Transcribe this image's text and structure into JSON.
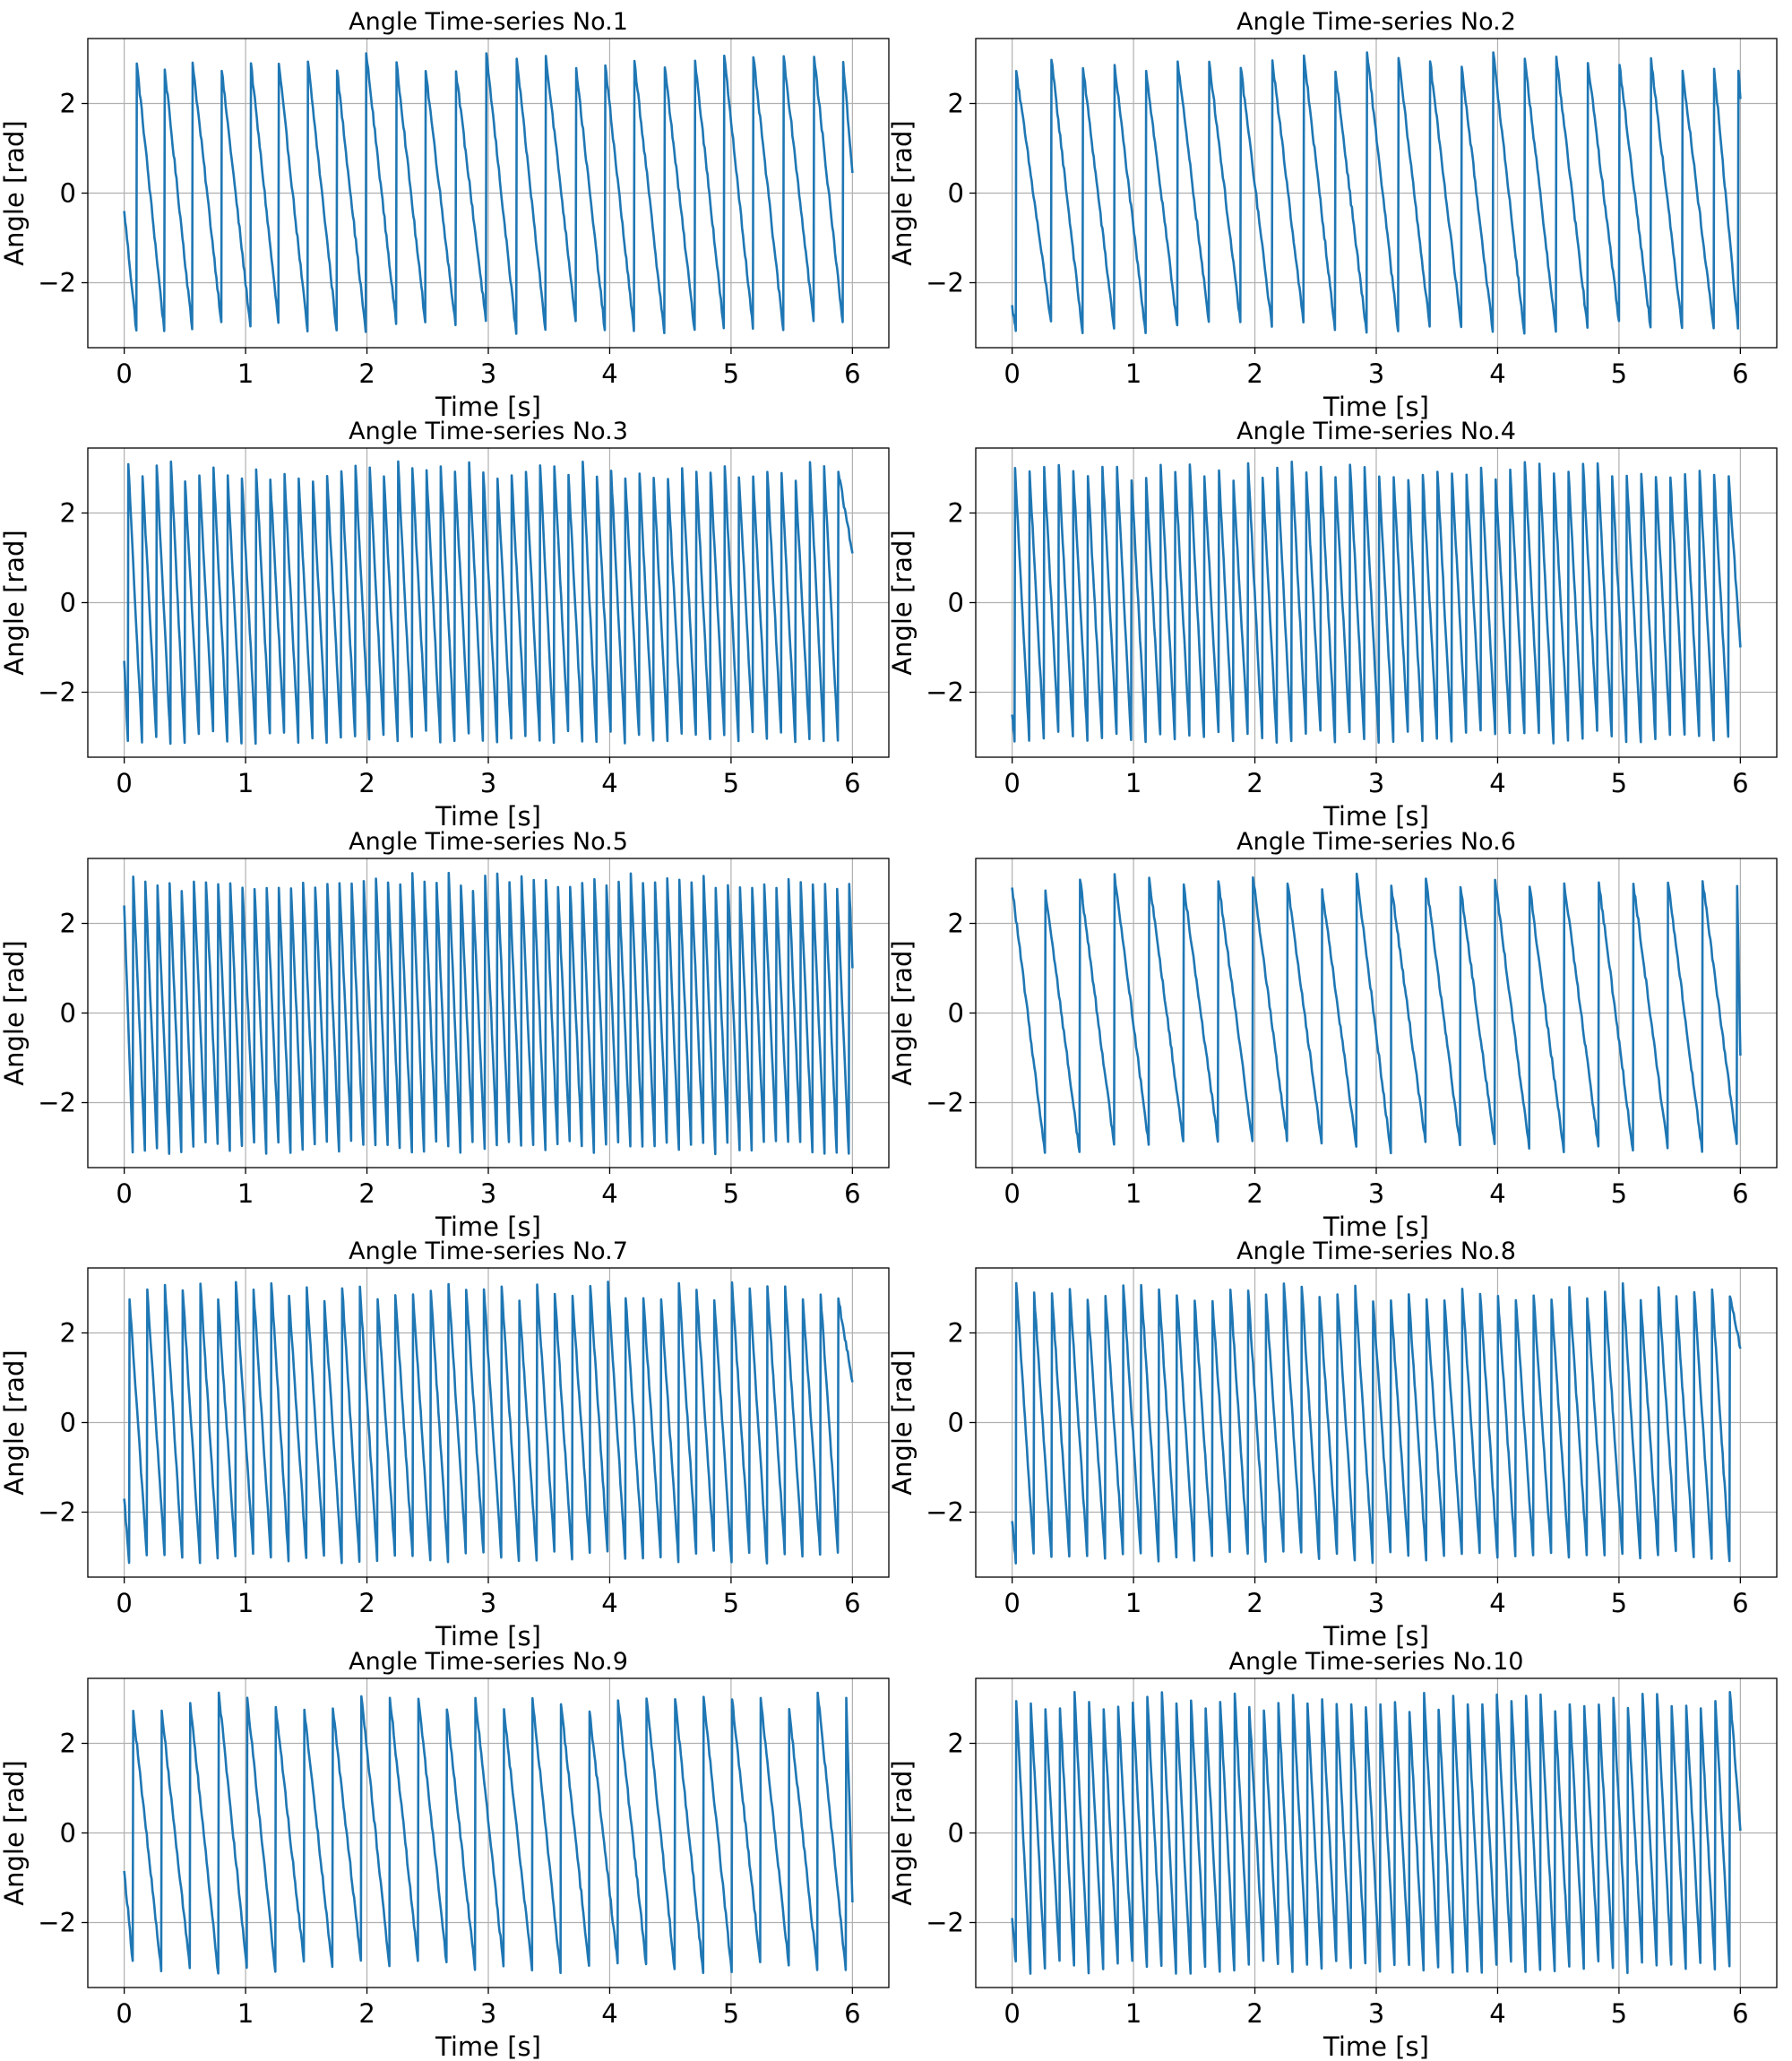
{
  "figure": {
    "line_color": "#1f77b4",
    "grid_color": "#b0b0b0",
    "background": "#ffffff"
  },
  "chart_data": [
    {
      "type": "line",
      "title": "Angle Time-series No.1",
      "xlabel": "Time [s]",
      "ylabel": "Angle [rad]",
      "xlim": [
        -0.3,
        6.3
      ],
      "ylim": [
        -3.45,
        3.45
      ],
      "xticks": [
        0,
        1,
        2,
        3,
        4,
        5,
        6
      ],
      "yticks": [
        -2,
        0,
        2
      ],
      "grid": true,
      "y_start": -0.4,
      "y_end": 0.45,
      "resets": [
        0.1,
        0.33,
        0.56,
        0.8,
        1.04,
        1.27,
        1.51,
        1.75,
        1.99,
        2.24,
        2.48,
        2.73,
        2.98,
        3.23,
        3.47,
        3.72,
        3.96,
        4.2,
        4.45,
        4.7,
        4.94,
        5.18,
        5.43,
        5.68,
        5.92
      ]
    },
    {
      "type": "line",
      "title": "Angle Time-series No.2",
      "xlabel": "Time [s]",
      "ylabel": "Angle [rad]",
      "xlim": [
        -0.3,
        6.3
      ],
      "ylim": [
        -3.45,
        3.45
      ],
      "xticks": [
        0,
        1,
        2,
        3,
        4,
        5,
        6
      ],
      "yticks": [
        -2,
        0,
        2
      ],
      "grid": true,
      "y_start": -2.5,
      "y_end": 2.1,
      "resets": [
        0.03,
        0.32,
        0.58,
        0.84,
        1.1,
        1.36,
        1.62,
        1.88,
        2.14,
        2.4,
        2.66,
        2.92,
        3.18,
        3.44,
        3.7,
        3.96,
        4.22,
        4.48,
        4.74,
        5.0,
        5.26,
        5.52,
        5.78,
        5.98
      ]
    },
    {
      "type": "line",
      "title": "Angle Time-series No.3",
      "xlabel": "Time [s]",
      "ylabel": "Angle [rad]",
      "xlim": [
        -0.3,
        6.3
      ],
      "ylim": [
        -3.45,
        3.45
      ],
      "xticks": [
        0,
        1,
        2,
        3,
        4,
        5,
        6
      ],
      "yticks": [
        -2,
        0,
        2
      ],
      "grid": true,
      "y_start": -1.3,
      "y_end": 1.1,
      "period": 0.117,
      "first_reset": 0.03
    },
    {
      "type": "line",
      "title": "Angle Time-series No.4",
      "xlabel": "Time [s]",
      "ylabel": "Angle [rad]",
      "xlim": [
        -0.3,
        6.3
      ],
      "ylim": [
        -3.45,
        3.45
      ],
      "xticks": [
        0,
        1,
        2,
        3,
        4,
        5,
        6
      ],
      "yticks": [
        -2,
        0,
        2
      ],
      "grid": true,
      "y_start": -2.5,
      "y_end": -1.0,
      "period": 0.12,
      "first_reset": 0.02
    },
    {
      "type": "line",
      "title": "Angle Time-series No.5",
      "xlabel": "Time [s]",
      "ylabel": "Angle [rad]",
      "xlim": [
        -0.3,
        6.3
      ],
      "ylim": [
        -3.45,
        3.45
      ],
      "xticks": [
        0,
        1,
        2,
        3,
        4,
        5,
        6
      ],
      "yticks": [
        -2,
        0,
        2
      ],
      "grid": true,
      "y_start": 2.4,
      "y_end": 1.0,
      "period": 0.1,
      "first_reset": 0.07
    },
    {
      "type": "line",
      "title": "Angle Time-series No.6",
      "xlabel": "Time [s]",
      "ylabel": "Angle [rad]",
      "xlim": [
        -0.3,
        6.3
      ],
      "ylim": [
        -3.45,
        3.45
      ],
      "xticks": [
        0,
        1,
        2,
        3,
        4,
        5,
        6
      ],
      "yticks": [
        -2,
        0,
        2
      ],
      "grid": true,
      "y_start": 2.8,
      "y_end": -0.95,
      "period": 0.285,
      "first_reset": 0.27
    },
    {
      "type": "line",
      "title": "Angle Time-series No.7",
      "xlabel": "Time [s]",
      "ylabel": "Angle [rad]",
      "xlim": [
        -0.3,
        6.3
      ],
      "ylim": [
        -3.45,
        3.45
      ],
      "xticks": [
        0,
        1,
        2,
        3,
        4,
        5,
        6
      ],
      "yticks": [
        -2,
        0,
        2
      ],
      "grid": true,
      "y_start": -1.7,
      "y_end": 0.9,
      "period": 0.146,
      "first_reset": 0.04
    },
    {
      "type": "line",
      "title": "Angle Time-series No.8",
      "xlabel": "Time [s]",
      "ylabel": "Angle [rad]",
      "xlim": [
        -0.3,
        6.3
      ],
      "ylim": [
        -3.45,
        3.45
      ],
      "xticks": [
        0,
        1,
        2,
        3,
        4,
        5,
        6
      ],
      "yticks": [
        -2,
        0,
        2
      ],
      "grid": true,
      "y_start": -2.2,
      "y_end": 1.65,
      "period": 0.147,
      "first_reset": 0.03
    },
    {
      "type": "line",
      "title": "Angle Time-series No.9",
      "xlabel": "Time [s]",
      "ylabel": "Angle [rad]",
      "xlim": [
        -0.3,
        6.3
      ],
      "ylim": [
        -3.45,
        3.45
      ],
      "xticks": [
        0,
        1,
        2,
        3,
        4,
        5,
        6
      ],
      "yticks": [
        -2,
        0,
        2
      ],
      "grid": true,
      "y_start": -0.85,
      "y_end": -1.55,
      "period": 0.235,
      "first_reset": 0.07
    },
    {
      "type": "line",
      "title": "Angle Time-series No.10",
      "xlabel": "Time [s]",
      "ylabel": "Angle [rad]",
      "xlim": [
        -0.3,
        6.3
      ],
      "ylim": [
        -3.45,
        3.45
      ],
      "xticks": [
        0,
        1,
        2,
        3,
        4,
        5,
        6
      ],
      "yticks": [
        -2,
        0,
        2
      ],
      "grid": true,
      "y_start": -1.9,
      "y_end": 0.05,
      "period": 0.12,
      "first_reset": 0.03
    }
  ]
}
